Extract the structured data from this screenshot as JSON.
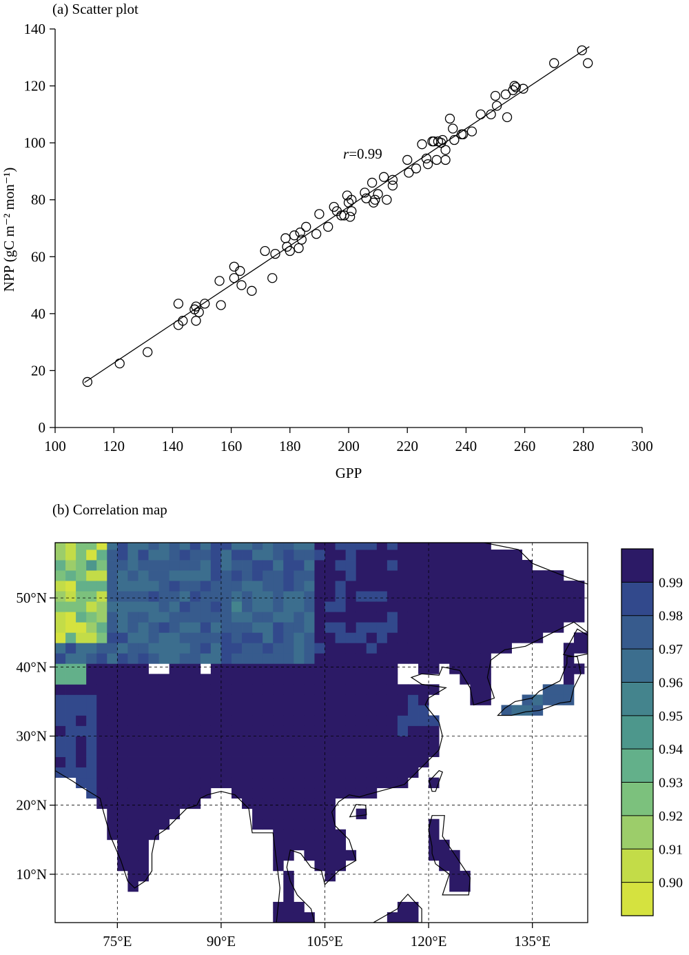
{
  "panel_a": {
    "title": "(a) Scatter plot"
  },
  "panel_b": {
    "title": "(b) Correlation map",
    "lat_labels": [
      "50°N",
      "40°N",
      "30°N",
      "20°N",
      "10°N"
    ],
    "lat_values": [
      50,
      40,
      30,
      20,
      10
    ],
    "lon_labels": [
      "75°E",
      "90°E",
      "105°E",
      "120°E",
      "135°E"
    ],
    "lon_values": [
      75,
      90,
      105,
      120,
      135
    ],
    "lon_range": [
      66,
      143
    ],
    "lat_range": [
      3,
      58
    ],
    "colorbar": {
      "levels": [
        "0.99",
        "0.98",
        "0.97",
        "0.96",
        "0.95",
        "0.94",
        "0.93",
        "0.92",
        "0.91",
        "0.90"
      ],
      "colors": [
        "#2c1a66",
        "#32498c",
        "#375b8d",
        "#3c6e8e",
        "#44848d",
        "#4d978c",
        "#63b08a",
        "#7cc17d",
        "#9ccd6a",
        "#c3dc48",
        "#d5e23f"
      ]
    }
  },
  "chart_data": [
    {
      "type": "scatter",
      "title": "(a) Scatter plot",
      "xlabel": "GPP",
      "ylabel": "NPP (gC m⁻² mon⁻¹)",
      "xlim": [
        100,
        300
      ],
      "ylim": [
        0,
        140
      ],
      "xticks": [
        100,
        120,
        140,
        160,
        180,
        200,
        220,
        240,
        260,
        280,
        300
      ],
      "yticks": [
        0,
        20,
        40,
        60,
        80,
        100,
        120,
        140
      ],
      "annotation": "r=0.99",
      "fit_line": {
        "x": [
          110,
          282
        ],
        "y": [
          15.8,
          133.8
        ]
      },
      "points": [
        [
          111,
          16
        ],
        [
          122,
          22.5
        ],
        [
          131.5,
          26.5
        ],
        [
          142,
          43.5
        ],
        [
          142,
          36
        ],
        [
          143.5,
          37.5
        ],
        [
          147.5,
          41.5
        ],
        [
          148,
          37.5
        ],
        [
          148,
          42.5
        ],
        [
          149,
          40.5
        ],
        [
          151,
          43.5
        ],
        [
          156,
          51.5
        ],
        [
          156.5,
          43
        ],
        [
          161,
          56.5
        ],
        [
          161,
          52.5
        ],
        [
          163,
          55
        ],
        [
          163.5,
          50
        ],
        [
          167,
          48
        ],
        [
          171.5,
          62
        ],
        [
          174,
          52.5
        ],
        [
          175,
          61
        ],
        [
          178.5,
          66.5
        ],
        [
          179,
          63.5
        ],
        [
          180,
          62
        ],
        [
          181.5,
          67.5
        ],
        [
          183,
          63
        ],
        [
          183.5,
          68.5
        ],
        [
          184,
          66
        ],
        [
          185.5,
          70.5
        ],
        [
          189,
          68
        ],
        [
          190,
          75
        ],
        [
          193,
          70.5
        ],
        [
          195,
          77.5
        ],
        [
          196,
          76
        ],
        [
          197.5,
          74.5
        ],
        [
          198.5,
          74.5
        ],
        [
          199.5,
          81.5
        ],
        [
          200,
          79
        ],
        [
          200.5,
          74
        ],
        [
          201,
          76
        ],
        [
          201,
          80
        ],
        [
          205.5,
          82.5
        ],
        [
          206,
          80.5
        ],
        [
          208,
          86
        ],
        [
          208.5,
          79
        ],
        [
          209,
          80
        ],
        [
          210,
          82
        ],
        [
          212,
          88
        ],
        [
          213,
          80
        ],
        [
          215,
          85
        ],
        [
          215,
          87
        ],
        [
          220,
          94
        ],
        [
          220.5,
          89.5
        ],
        [
          223,
          91
        ],
        [
          225,
          99.5
        ],
        [
          226.5,
          94.5
        ],
        [
          227,
          92.5
        ],
        [
          228.5,
          100.5
        ],
        [
          229,
          100.5
        ],
        [
          230,
          94
        ],
        [
          230.5,
          100.5
        ],
        [
          231.5,
          100
        ],
        [
          232,
          101
        ],
        [
          233,
          97.5
        ],
        [
          233,
          94
        ],
        [
          234.5,
          108.5
        ],
        [
          235.5,
          105
        ],
        [
          236,
          101
        ],
        [
          238.5,
          103
        ],
        [
          239,
          103
        ],
        [
          242,
          104
        ],
        [
          245,
          110
        ],
        [
          248.5,
          110
        ],
        [
          250,
          116.5
        ],
        [
          250.5,
          113
        ],
        [
          253.5,
          117
        ],
        [
          254,
          109
        ],
        [
          256,
          118.5
        ],
        [
          256.5,
          120
        ],
        [
          257,
          119.5
        ],
        [
          259.5,
          119
        ],
        [
          270,
          128
        ],
        [
          279.5,
          132.5
        ],
        [
          281.5,
          128
        ]
      ]
    },
    {
      "type": "heatmap",
      "title": "(b) Correlation map",
      "x_ticks": [
        "75°E",
        "90°E",
        "105°E",
        "120°E",
        "135°E"
      ],
      "y_ticks": [
        "50°N",
        "40°N",
        "30°N",
        "20°N",
        "10°N"
      ],
      "colorbar_levels": [
        0.99,
        0.98,
        0.97,
        0.96,
        0.95,
        0.94,
        0.93,
        0.92,
        0.91,
        0.9
      ],
      "value_range": [
        0.89,
        1.0
      ]
    }
  ]
}
